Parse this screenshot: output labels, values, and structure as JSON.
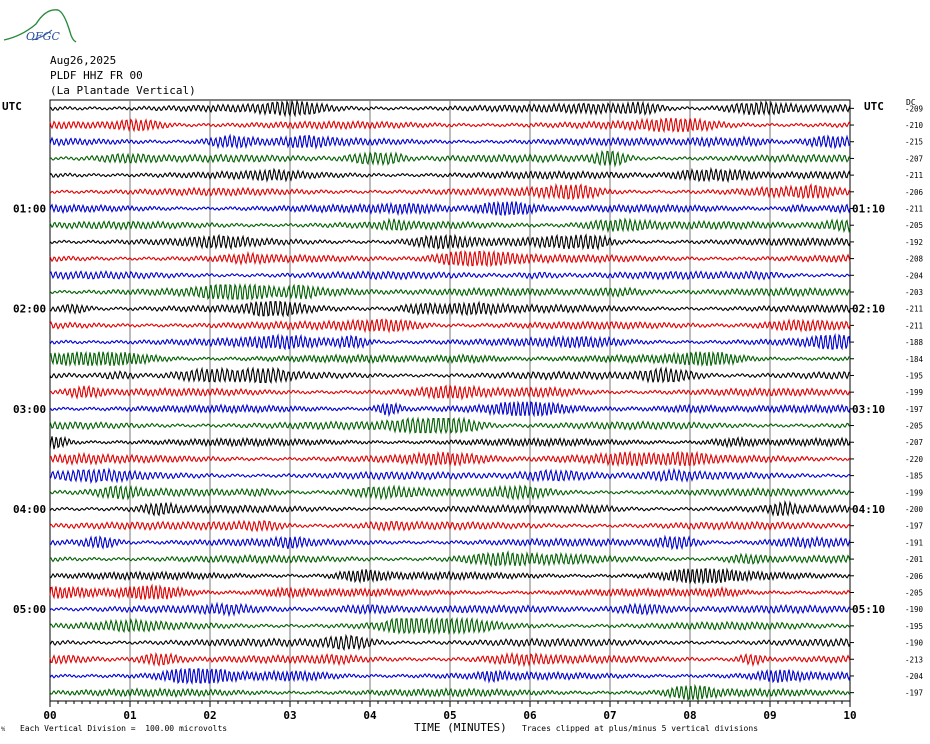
{
  "header": {
    "date": "Aug26,2025",
    "station": "PLDF HHZ FR 00",
    "location": "(La Plantade Vertical)",
    "left_utc": "UTC",
    "right_utc": "UTC",
    "dc_label": "DC"
  },
  "logo": {
    "text": "OFGC"
  },
  "footer": {
    "scale_note": "Each Vertical Division =  100.00 microvolts",
    "clip_note": "Traces clipped at plus/minus 5 vertical divisions"
  },
  "chart_data": {
    "type": "line",
    "subtype": "helicorder",
    "xlabel": "TIME (MINUTES)",
    "x_ticks": [
      "00",
      "01",
      "02",
      "03",
      "04",
      "05",
      "06",
      "07",
      "08",
      "09",
      "10"
    ],
    "xlim": [
      0,
      10
    ],
    "trace_colors": [
      "#000000",
      "#e00000",
      "#0000d0",
      "#006000"
    ],
    "left_hour_labels": [
      {
        "row": 6,
        "text": "01:00"
      },
      {
        "row": 12,
        "text": "02:00"
      },
      {
        "row": 18,
        "text": "03:00"
      },
      {
        "row": 24,
        "text": "04:00"
      },
      {
        "row": 30,
        "text": "05:00"
      }
    ],
    "right_hour_labels": [
      {
        "row": 6,
        "text": "01:10"
      },
      {
        "row": 12,
        "text": "02:10"
      },
      {
        "row": 18,
        "text": "03:10"
      },
      {
        "row": 24,
        "text": "04:10"
      },
      {
        "row": 30,
        "text": "05:10"
      }
    ],
    "dc_offsets": [
      "-209",
      "-210",
      "-215",
      "-207",
      "-211",
      "-206",
      "-211",
      "-205",
      "-192",
      "-208",
      "-204",
      "-203",
      "-211",
      "-211",
      "-188",
      "-184",
      "-195",
      "-199",
      "-197",
      "-205",
      "-207",
      "-220",
      "-185",
      "-199",
      "-200",
      "-197",
      "-191",
      "-201",
      "-206",
      "-205",
      "-190",
      "-195",
      "-190",
      "-213",
      "-204",
      "-197"
    ],
    "grid": true,
    "clip": "plus/minus 5 vertical divisions",
    "vertical_division_microvolts": 100.0
  }
}
